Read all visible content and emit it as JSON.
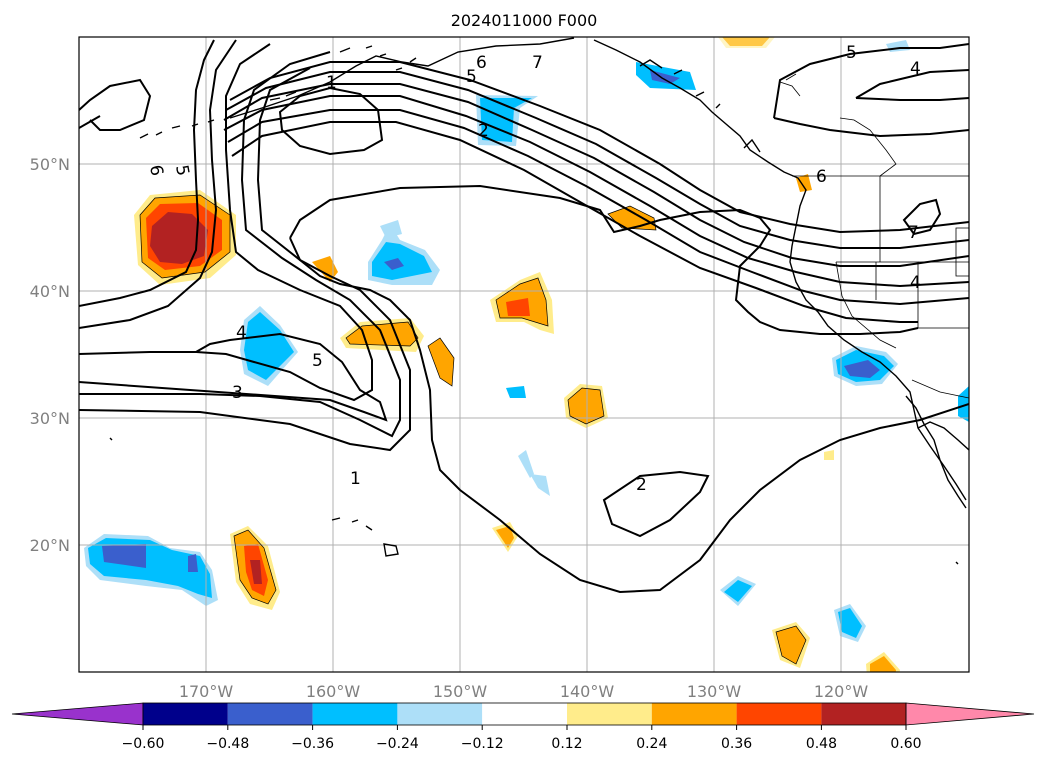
{
  "title": "2024011000 F000",
  "lon_labels": [
    "170°W",
    "160°W",
    "150°W",
    "140°W",
    "130°W",
    "120°W"
  ],
  "lat_labels": [
    "50°N",
    "40°N",
    "30°N",
    "20°N"
  ],
  "colorbar": {
    "ticks": [
      "−0.60",
      "−0.48",
      "−0.36",
      "−0.24",
      "−0.12",
      "0.12",
      "0.24",
      "0.36",
      "0.48",
      "0.60"
    ],
    "colors": [
      "#9932CC",
      "#00008B",
      "#3A5FCD",
      "#00BFFF",
      "#ADDFF8",
      "#FFFFFF",
      "#FFEC8B",
      "#FFA500",
      "#FF4500",
      "#B22222",
      "#FF88AA"
    ]
  },
  "contour_labels": [
    "6",
    "5",
    "1",
    "6",
    "7",
    "5",
    "2",
    "5",
    "4",
    "6",
    "7",
    "4",
    "4",
    "5",
    "3",
    "1",
    "2"
  ],
  "map_extent": {
    "lon": [
      -180,
      -110
    ],
    "lat": [
      10,
      60
    ]
  }
}
